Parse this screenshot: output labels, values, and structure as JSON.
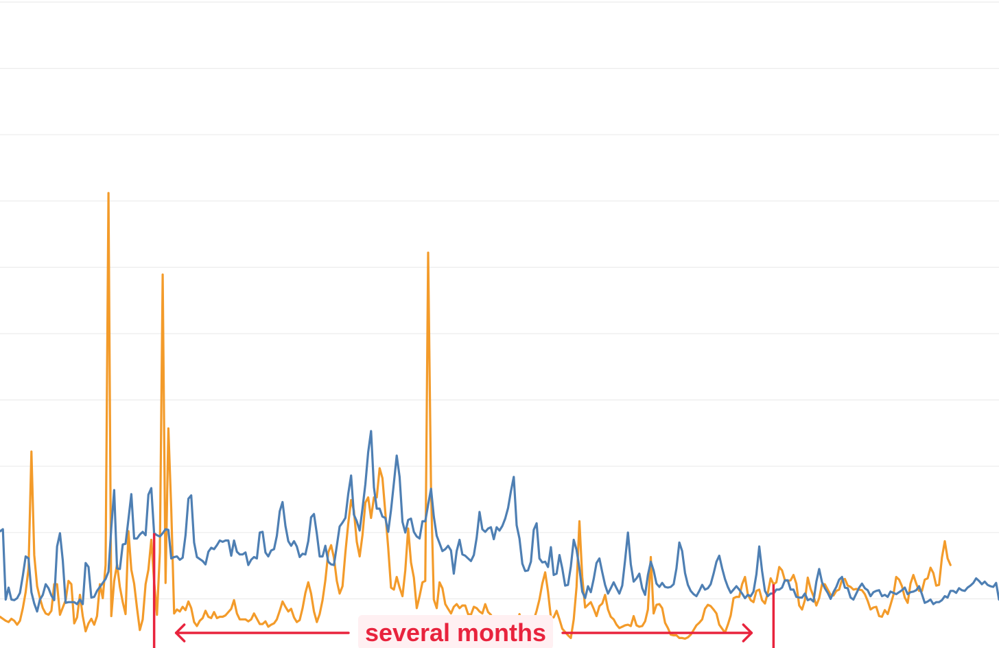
{
  "chart_data": {
    "type": "line",
    "title": "",
    "xlabel": "",
    "ylabel": "",
    "x_range": [
      0,
      350
    ],
    "ylim": [
      0,
      100
    ],
    "grid": {
      "horizontal": true,
      "vertical": false,
      "y_ticks": [
        10,
        20,
        30,
        40,
        50,
        60,
        70,
        80,
        90,
        100
      ]
    },
    "legend": "none",
    "series": [
      {
        "color": "#f39b2a",
        "values": [
          7.3,
          7,
          6.7,
          6.5,
          7,
          6.7,
          6.1,
          6.7,
          8.6,
          11,
          14.6,
          32.2,
          16.6,
          11.9,
          10.1,
          8.6,
          7.8,
          7.6,
          8.2,
          12.2,
          12.2,
          7.6,
          8.7,
          9.8,
          12.7,
          12.2,
          6.3,
          7.2,
          10.6,
          7.4,
          5.1,
          6.3,
          7,
          6.1,
          7.4,
          12.2,
          10.1,
          15.1,
          71.2,
          7.4,
          12.7,
          15.2,
          11.8,
          9.5,
          7.7,
          20.2,
          14.4,
          12.3,
          8.6,
          5.3,
          6.9,
          12.2,
          14.4,
          18.9,
          12.7,
          7.6,
          17,
          58.9,
          12.4,
          35.7,
          23.5,
          7.8,
          8.4,
          8.1,
          8.8,
          8.3,
          9.6,
          8.6,
          6.5,
          5.9,
          6.7,
          7.1,
          8.2,
          7.3,
          7.1,
          8,
          7.1,
          7.3,
          7.3,
          7.5,
          8,
          8.5,
          9.8,
          7.8,
          6.9,
          6.9,
          6.9,
          6.6,
          6.9,
          7.8,
          7,
          6.2,
          6.2,
          6.6,
          5.8,
          6.1,
          6.3,
          6.9,
          8.2,
          9.6,
          8.8,
          8.1,
          8.5,
          7.2,
          6.5,
          6.8,
          8.6,
          10.9,
          12.5,
          10.8,
          8.1,
          6.5,
          7.7,
          9.8,
          12.8,
          17,
          18.1,
          16.2,
          12.7,
          10.8,
          11.9,
          17,
          21.3,
          24.9,
          23.3,
          18.6,
          16.4,
          19.6,
          24.5,
          25.3,
          22.2,
          25.3,
          25.3,
          29.7,
          28.2,
          23,
          17.7,
          11.7,
          11.4,
          13.3,
          11.7,
          10.4,
          14.3,
          20.6,
          15.5,
          13.2,
          8.6,
          10.4,
          12.5,
          12.7,
          62.2,
          26.5,
          9.9,
          8.6,
          12.5,
          11.6,
          9.2,
          8.5,
          7.8,
          8.8,
          9.2,
          8.6,
          9,
          9,
          7.7,
          7.6,
          8.8,
          8.6,
          8.1,
          7.8,
          9.2,
          8,
          7.6,
          6.5,
          5.8,
          5.3,
          5.4,
          5.6,
          5.8,
          5.3,
          5.4,
          5.5,
          7.7,
          5.9,
          5.4,
          4.4,
          4.2,
          6.8,
          8.2,
          9.9,
          12.3,
          14,
          11.1,
          7.2,
          7.2,
          8.2,
          6.9,
          5.5,
          5,
          4.5,
          4.1,
          6.9,
          11.8,
          21.7,
          13.3,
          8.7,
          9.1,
          9.5,
          8.5,
          7.4,
          8.9,
          9.3,
          10.6,
          8.4,
          7.3,
          6.9,
          6.1,
          5.6,
          5.8,
          6,
          6.1,
          5.9,
          7.4,
          6,
          5.8,
          5.9,
          6.6,
          8.4,
          16.3,
          7.8,
          9.1,
          9.2,
          8.6,
          6.4,
          5.6,
          4.6,
          4.5,
          4.5,
          4.1,
          4.1,
          4,
          4.2,
          4.6,
          5.3,
          6,
          6.4,
          6.9,
          8.5,
          9.1,
          8.9,
          8.4,
          7.8,
          6.1,
          5.5,
          4.9,
          6.1,
          7.5,
          10.1,
          10.3,
          10.3,
          12.2,
          13.3,
          10.7,
          9.8,
          9.5,
          11.2,
          11.4,
          9.8,
          9.3,
          10.9,
          13.1,
          12.2,
          12.5,
          14.8,
          14.3,
          12.8,
          12.7,
          12.8,
          13.6,
          12.3,
          9,
          8.4,
          9.8,
          13.2,
          11.5,
          10.4,
          9,
          10.1,
          12.2,
          12.2,
          11.4,
          10.6,
          10.5,
          11.2,
          11.4,
          12.9,
          13,
          12,
          11.8,
          11.4,
          11.5,
          11.4,
          11.3,
          10.7,
          9.7,
          8.4,
          8.7,
          8.8,
          7.4,
          7.3,
          8.3,
          7.7,
          9.1,
          10.6,
          13.3,
          12.9,
          11.9,
          10.2,
          9.4,
          12.3,
          13.6,
          12.3,
          11.2,
          11.2,
          12.9,
          13.1,
          14.7,
          13.9,
          12,
          12.1,
          16.2,
          18.7,
          16.1,
          15.1
        ]
      },
      {
        "color": "#4e7fb3",
        "values": [
          20.2,
          20.5,
          9.9,
          11.7,
          9.9,
          9.8,
          10.1,
          10.9,
          13.5,
          16.4,
          16.1,
          11,
          9.3,
          8.1,
          9.9,
          10.6,
          12.2,
          11.6,
          10.5,
          9.8,
          17.9,
          19.9,
          15.8,
          9.4,
          9.5,
          9.5,
          9.5,
          9.2,
          9.9,
          9.2,
          15.4,
          14.8,
          10.2,
          10.3,
          11.2,
          11.8,
          12.4,
          13,
          14.1,
          20.7,
          26.4,
          14.6,
          14.5,
          18.2,
          18.3,
          22,
          25.8,
          19.1,
          19.1,
          19.7,
          20.1,
          19.6,
          25.7,
          26.7,
          19.9,
          19.6,
          19.4,
          19.9,
          20.5,
          20.4,
          16.1,
          16.3,
          16.4,
          15.9,
          16.2,
          19.6,
          25.1,
          25.6,
          18.5,
          16.3,
          16,
          15.7,
          15.2,
          17.1,
          17.7,
          17.5,
          18.1,
          18.8,
          18.6,
          18.8,
          18.8,
          16.5,
          18.8,
          17.1,
          16.7,
          16.7,
          17,
          15.1,
          15.9,
          16.3,
          16.1,
          20,
          20.1,
          17,
          16.4,
          17.3,
          17.5,
          19.5,
          23.2,
          24.6,
          21,
          18.7,
          18,
          18.7,
          17.9,
          16.3,
          16.8,
          16.7,
          18.7,
          22.3,
          22.8,
          19.8,
          16.4,
          16.4,
          18,
          15.6,
          15.2,
          15.1,
          18,
          20.9,
          21.5,
          22.2,
          25.8,
          28.6,
          22.7,
          21.7,
          20.3,
          23.6,
          27.3,
          32.1,
          35.3,
          26.8,
          23.6,
          23.6,
          22.4,
          22.2,
          20.1,
          23.4,
          27.5,
          31.6,
          28.4,
          21.6,
          20,
          21.9,
          22.1,
          20.1,
          19.4,
          19.1,
          21.7,
          21.7,
          24.2,
          26.6,
          22.4,
          19.5,
          18.4,
          17.2,
          17.5,
          18,
          17.3,
          13.8,
          17.2,
          18.9,
          16.7,
          16.5,
          16.1,
          15.7,
          16.6,
          19.2,
          23.1,
          20.5,
          20.1,
          20.6,
          20.8,
          19,
          20.8,
          20.3,
          21,
          22.1,
          23.7,
          26.2,
          28.4,
          21.1,
          19.1,
          15.3,
          14.2,
          14.3,
          15.6,
          20.4,
          21.4,
          16.1,
          15.5,
          15.6,
          14.8,
          17.8,
          13.6,
          13.8,
          16.6,
          14.6,
          12,
          12.1,
          14.9,
          18.9,
          17.4,
          14.6,
          11.1,
          10.1,
          11.9,
          11,
          13,
          15.4,
          16.1,
          14,
          12.1,
          10.8,
          11.6,
          12.5,
          11.6,
          10.8,
          12,
          15.8,
          20,
          15.2,
          12.6,
          13.1,
          13.8,
          11.6,
          10.6,
          13.6,
          15.6,
          14.3,
          12.3,
          11.8,
          12.4,
          11.8,
          11.7,
          11.8,
          12.2,
          14.6,
          18.5,
          17.2,
          13.9,
          12.1,
          11.2,
          10.7,
          10.4,
          11.2,
          12.1,
          11.4,
          11.6,
          12.2,
          13.8,
          15.6,
          16.5,
          14.6,
          13,
          11.8,
          10.9,
          11.4,
          11.9,
          11.4,
          10.8,
          10.1,
          10.6,
          10.4,
          11.1,
          13.7,
          17.9,
          14.2,
          11.2,
          10.4,
          10.8,
          10.8,
          11.4,
          11.4,
          11.7,
          12.8,
          12.8,
          11.4,
          11.4,
          10.3,
          10.2,
          10.2,
          10.8,
          9.8,
          10,
          9.6,
          12.6,
          14.5,
          12.5,
          11.6,
          10.9,
          10,
          11,
          11.8,
          12.9,
          13.3,
          11.7,
          11.6,
          10.2,
          9.9,
          10.8,
          11.7,
          12.3,
          11.6,
          11.3,
          10.4,
          11,
          11.2,
          11.3,
          10.4,
          10.6,
          10.3,
          11.1,
          10.9,
          10.7,
          11,
          11.3,
          11.7,
          10.7,
          11,
          11.1,
          11.3,
          11.9,
          10.7,
          9.4,
          9.6,
          9.9,
          9.2,
          9.5,
          9.5,
          9.8,
          10.4,
          10.2,
          11.2,
          11.2,
          10.9,
          11.6,
          11.3,
          11.2,
          11.7,
          12,
          12.4,
          13.1,
          12.7,
          12.2,
          12.6,
          12.1,
          11.9,
          11.8,
          12.4,
          9.9,
          9.7,
          9.8,
          9.6,
          10.7
        ]
      }
    ],
    "markers": {
      "start_x": 54,
      "end_x": 271,
      "color": "#e8233d"
    },
    "annotations": [
      {
        "text": "several months",
        "color": "#e8233d"
      }
    ]
  }
}
